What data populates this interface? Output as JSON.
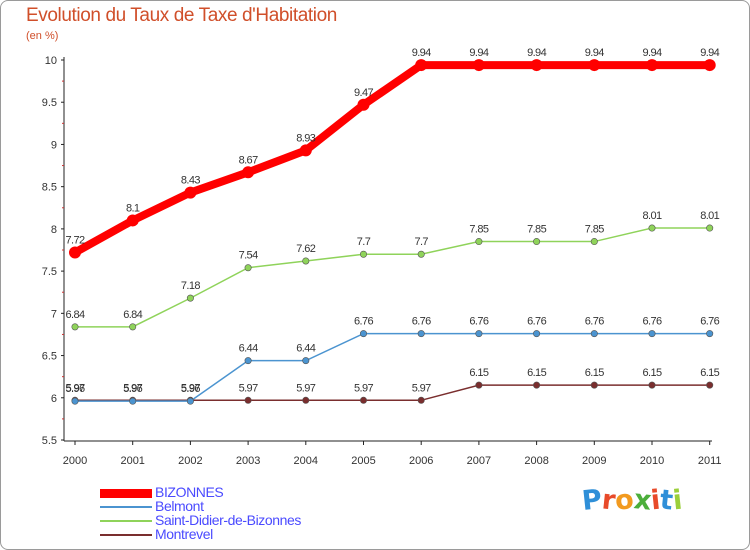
{
  "chart_data": {
    "type": "line",
    "title": "Evolution du Taux de Taxe d'Habitation",
    "subtitle": "(en %)",
    "xlabel": "",
    "ylabel": "",
    "x": [
      "2000",
      "2001",
      "2002",
      "2003",
      "2004",
      "2005",
      "2006",
      "2007",
      "2008",
      "2009",
      "2010",
      "2011"
    ],
    "ylim": [
      5.5,
      10
    ],
    "yticks": [
      "5.5",
      "6",
      "6.5",
      "7",
      "7.5",
      "8",
      "8.5",
      "9",
      "9.5",
      "10"
    ],
    "grid": false,
    "legend_position": "bottom-left",
    "series": [
      {
        "name": "BIZONNES",
        "color": "#ff0000",
        "values": [
          7.72,
          8.1,
          8.43,
          8.67,
          8.93,
          9.47,
          9.94,
          9.94,
          9.94,
          9.94,
          9.94,
          9.94
        ],
        "labels": [
          "7.72",
          "8.1",
          "8.43",
          "8.67",
          "8.93",
          "9.47",
          "9.94",
          "9.94",
          "9.94",
          "9.94",
          "9.94",
          "9.94"
        ]
      },
      {
        "name": "Belmont",
        "color": "#4b94d0",
        "values": [
          5.96,
          5.96,
          5.96,
          6.44,
          6.44,
          6.76,
          6.76,
          6.76,
          6.76,
          6.76,
          6.76,
          6.76
        ],
        "labels": [
          "5.96",
          "5.96",
          "5.96",
          "6.44",
          "6.44",
          "6.76",
          "6.76",
          "6.76",
          "6.76",
          "6.76",
          "6.76",
          "6.76"
        ]
      },
      {
        "name": "Saint-Didier-de-Bizonnes",
        "color": "#8fd35a",
        "values": [
          6.84,
          6.84,
          7.18,
          7.54,
          7.62,
          7.7,
          7.7,
          7.85,
          7.85,
          7.85,
          8.01,
          8.01
        ],
        "labels": [
          "6.84",
          "6.84",
          "7.18",
          "7.54",
          "7.62",
          "7.7",
          "7.7",
          "7.85",
          "7.85",
          "7.85",
          "8.01",
          "8.01"
        ]
      },
      {
        "name": "Montrevel",
        "color": "#7a2e2e",
        "values": [
          5.97,
          5.97,
          5.97,
          5.97,
          5.97,
          5.97,
          5.97,
          6.15,
          6.15,
          6.15,
          6.15,
          6.15
        ],
        "labels": [
          "5.97",
          "5.97",
          "5.97",
          "5.97",
          "5.97",
          "5.97",
          "5.97",
          "6.15",
          "6.15",
          "6.15",
          "6.15",
          "6.15"
        ]
      }
    ]
  },
  "logo": {
    "text": "Proxiti",
    "colors": [
      "#2f8fd8",
      "#e84a2a",
      "#f29a1f",
      "#4cae3b",
      "#e84a2a",
      "#2f8fd8",
      "#9bcf3a"
    ]
  }
}
